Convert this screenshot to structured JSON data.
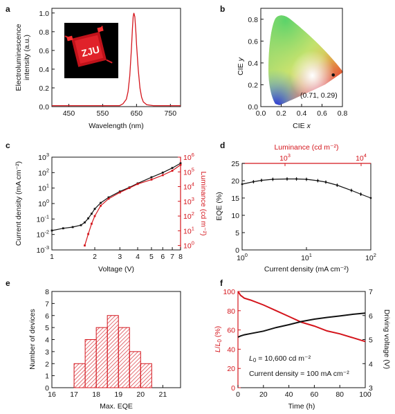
{
  "figure": {
    "panel_letters": [
      "a",
      "b",
      "c",
      "d",
      "e",
      "f"
    ]
  },
  "colors": {
    "red": "#d4141b",
    "black": "#111111"
  },
  "chart_data": [
    {
      "panel": "a",
      "type": "line",
      "xlabel": "Wavelength (nm)",
      "ylabel": "Electroluminescence intensity (a.u.)",
      "xlim": [
        400,
        780
      ],
      "ylim": [
        0,
        1.05
      ],
      "xticks": [
        450,
        550,
        650,
        750
      ],
      "yticks": [
        0.0,
        0.2,
        0.4,
        0.6,
        0.8,
        1.0
      ],
      "ytick_labels": [
        "0.0",
        "0.2",
        "0.4",
        "0.6",
        "0.8",
        "1.0"
      ],
      "inset": {
        "text": "ZJU",
        "description": "photo of red-emitting device"
      },
      "series": [
        {
          "color": "#d4141b",
          "x": [
            400,
            600,
            610,
            620,
            625,
            630,
            635,
            638,
            640,
            642,
            645,
            648,
            650,
            655,
            660,
            665,
            670,
            680,
            700,
            780
          ],
          "y": [
            0.01,
            0.01,
            0.03,
            0.08,
            0.16,
            0.33,
            0.62,
            0.84,
            0.96,
            1.0,
            0.96,
            0.8,
            0.66,
            0.4,
            0.2,
            0.1,
            0.05,
            0.02,
            0.01,
            0.01
          ]
        }
      ]
    },
    {
      "panel": "b",
      "type": "scatter",
      "xlabel": "CIE x",
      "ylabel": "CIE y",
      "xlim": [
        0,
        0.8
      ],
      "ylim": [
        0,
        0.9
      ],
      "xticks": [
        0.0,
        0.2,
        0.4,
        0.6,
        0.8
      ],
      "yticks": [
        0.0,
        0.2,
        0.4,
        0.6,
        0.8
      ],
      "point": {
        "x": 0.71,
        "y": 0.29,
        "label": "(0.71, 0.29)"
      }
    },
    {
      "panel": "c",
      "type": "line",
      "xlabel": "Voltage (V)",
      "ylabel": "Current density (mA cm⁻²)",
      "ylabel_right": "Luminance (cd m⁻²)",
      "xscale": "log",
      "yscale": "log",
      "xlim": [
        1,
        8
      ],
      "ylim": [
        0.001,
        1000
      ],
      "ylim_right": [
        0.5,
        1000000
      ],
      "xticks": [
        1,
        2,
        3,
        4,
        5,
        6,
        7,
        8
      ],
      "yticks": [
        0.001,
        0.01,
        0.1,
        1,
        10,
        100,
        1000
      ],
      "ytick_exp": [
        "-3",
        "-2",
        "-1",
        "0",
        "1",
        "2",
        "3"
      ],
      "yticks_right": [
        1,
        10,
        100,
        1000,
        10000,
        100000,
        1000000
      ],
      "ytick_right_exp": [
        "0",
        "1",
        "2",
        "3",
        "4",
        "5",
        "6"
      ],
      "series": [
        {
          "name": "current density",
          "color": "#111111",
          "axis": "left",
          "x": [
            1,
            1.2,
            1.4,
            1.6,
            1.7,
            1.8,
            1.9,
            2.0,
            2.2,
            2.5,
            3,
            3.5,
            4,
            5,
            6,
            7,
            8
          ],
          "y": [
            0.018,
            0.025,
            0.03,
            0.04,
            0.06,
            0.11,
            0.22,
            0.45,
            1.1,
            2.5,
            6,
            11,
            20,
            50,
            100,
            200,
            400
          ]
        },
        {
          "name": "luminance",
          "color": "#d4141b",
          "axis": "right",
          "x": [
            1.7,
            1.8,
            1.9,
            2.0,
            2.2,
            2.5,
            3,
            3.5,
            4,
            5,
            6,
            7,
            8
          ],
          "y": [
            1,
            6,
            30,
            100,
            500,
            1500,
            4000,
            8000,
            15000,
            30000,
            60000,
            120000,
            300000
          ]
        }
      ]
    },
    {
      "panel": "d",
      "type": "line",
      "xlabel": "Current density (mA cm⁻²)",
      "ylabel": "EQE (%)",
      "xlabel_top": "Luminance (cd m⁻²)",
      "xscale": "log",
      "xlim": [
        1,
        100
      ],
      "ylim": [
        0,
        25
      ],
      "xticks": [
        1,
        10,
        100
      ],
      "xtick_exp": [
        "0",
        "1",
        "2"
      ],
      "xticks_top": [
        1000,
        10000
      ],
      "xtick_top_exp": [
        "3",
        "4"
      ],
      "yticks": [
        0,
        5,
        10,
        15,
        20,
        25
      ],
      "series": [
        {
          "color": "#111111",
          "x": [
            1,
            1.5,
            2,
            3,
            5,
            7,
            10,
            15,
            20,
            30,
            50,
            70,
            100
          ],
          "y": [
            19.0,
            19.7,
            20.1,
            20.4,
            20.5,
            20.5,
            20.4,
            20.0,
            19.6,
            18.7,
            17.2,
            16.1,
            15.0
          ]
        }
      ]
    },
    {
      "panel": "e",
      "type": "bar",
      "xlabel": "Max. EQE",
      "ylabel": "Number of devices",
      "xlim": [
        16,
        21.8
      ],
      "ylim": [
        0,
        8
      ],
      "xticks": [
        16,
        17,
        18,
        19,
        20,
        21
      ],
      "yticks": [
        0,
        1,
        2,
        3,
        4,
        5,
        6,
        7,
        8
      ],
      "bin_width": 0.5,
      "bin_centers": [
        17.25,
        17.75,
        18.25,
        18.75,
        19.25,
        19.75,
        20.25
      ],
      "values": [
        2,
        4,
        5,
        6,
        5,
        3,
        2
      ],
      "color": "#d4141b"
    },
    {
      "panel": "f",
      "type": "line",
      "xlabel": "Time (h)",
      "ylabel": "L/L₀ (%)",
      "ylabel_right": "Driving voltage (V)",
      "xlim": [
        0,
        100
      ],
      "ylim": [
        0,
        100
      ],
      "ylim_right": [
        3,
        7
      ],
      "xticks": [
        0,
        20,
        40,
        60,
        80,
        100
      ],
      "yticks": [
        0,
        20,
        40,
        60,
        80,
        100
      ],
      "yticks_right": [
        3,
        4,
        5,
        6,
        7
      ],
      "annotations": {
        "l0_prefix": "L",
        "l0_sub": "0",
        "l0_value": " = 10,600 cd m⁻²",
        "current": "Current density = 100 mA cm⁻²"
      },
      "series": [
        {
          "name": "L/L0",
          "color": "#d4141b",
          "axis": "left",
          "x": [
            0,
            2,
            5,
            10,
            20,
            30,
            40,
            50,
            60,
            70,
            80,
            90,
            100
          ],
          "y": [
            100,
            96,
            93,
            91,
            86,
            80,
            74,
            68,
            64,
            59,
            56,
            52,
            48
          ]
        },
        {
          "name": "driving voltage",
          "color": "#111111",
          "axis": "right",
          "x": [
            0,
            2,
            5,
            10,
            20,
            30,
            40,
            50,
            60,
            70,
            80,
            90,
            100
          ],
          "y": [
            5.1,
            5.15,
            5.2,
            5.25,
            5.35,
            5.5,
            5.62,
            5.75,
            5.85,
            5.92,
            5.98,
            6.05,
            6.1
          ]
        }
      ]
    }
  ]
}
